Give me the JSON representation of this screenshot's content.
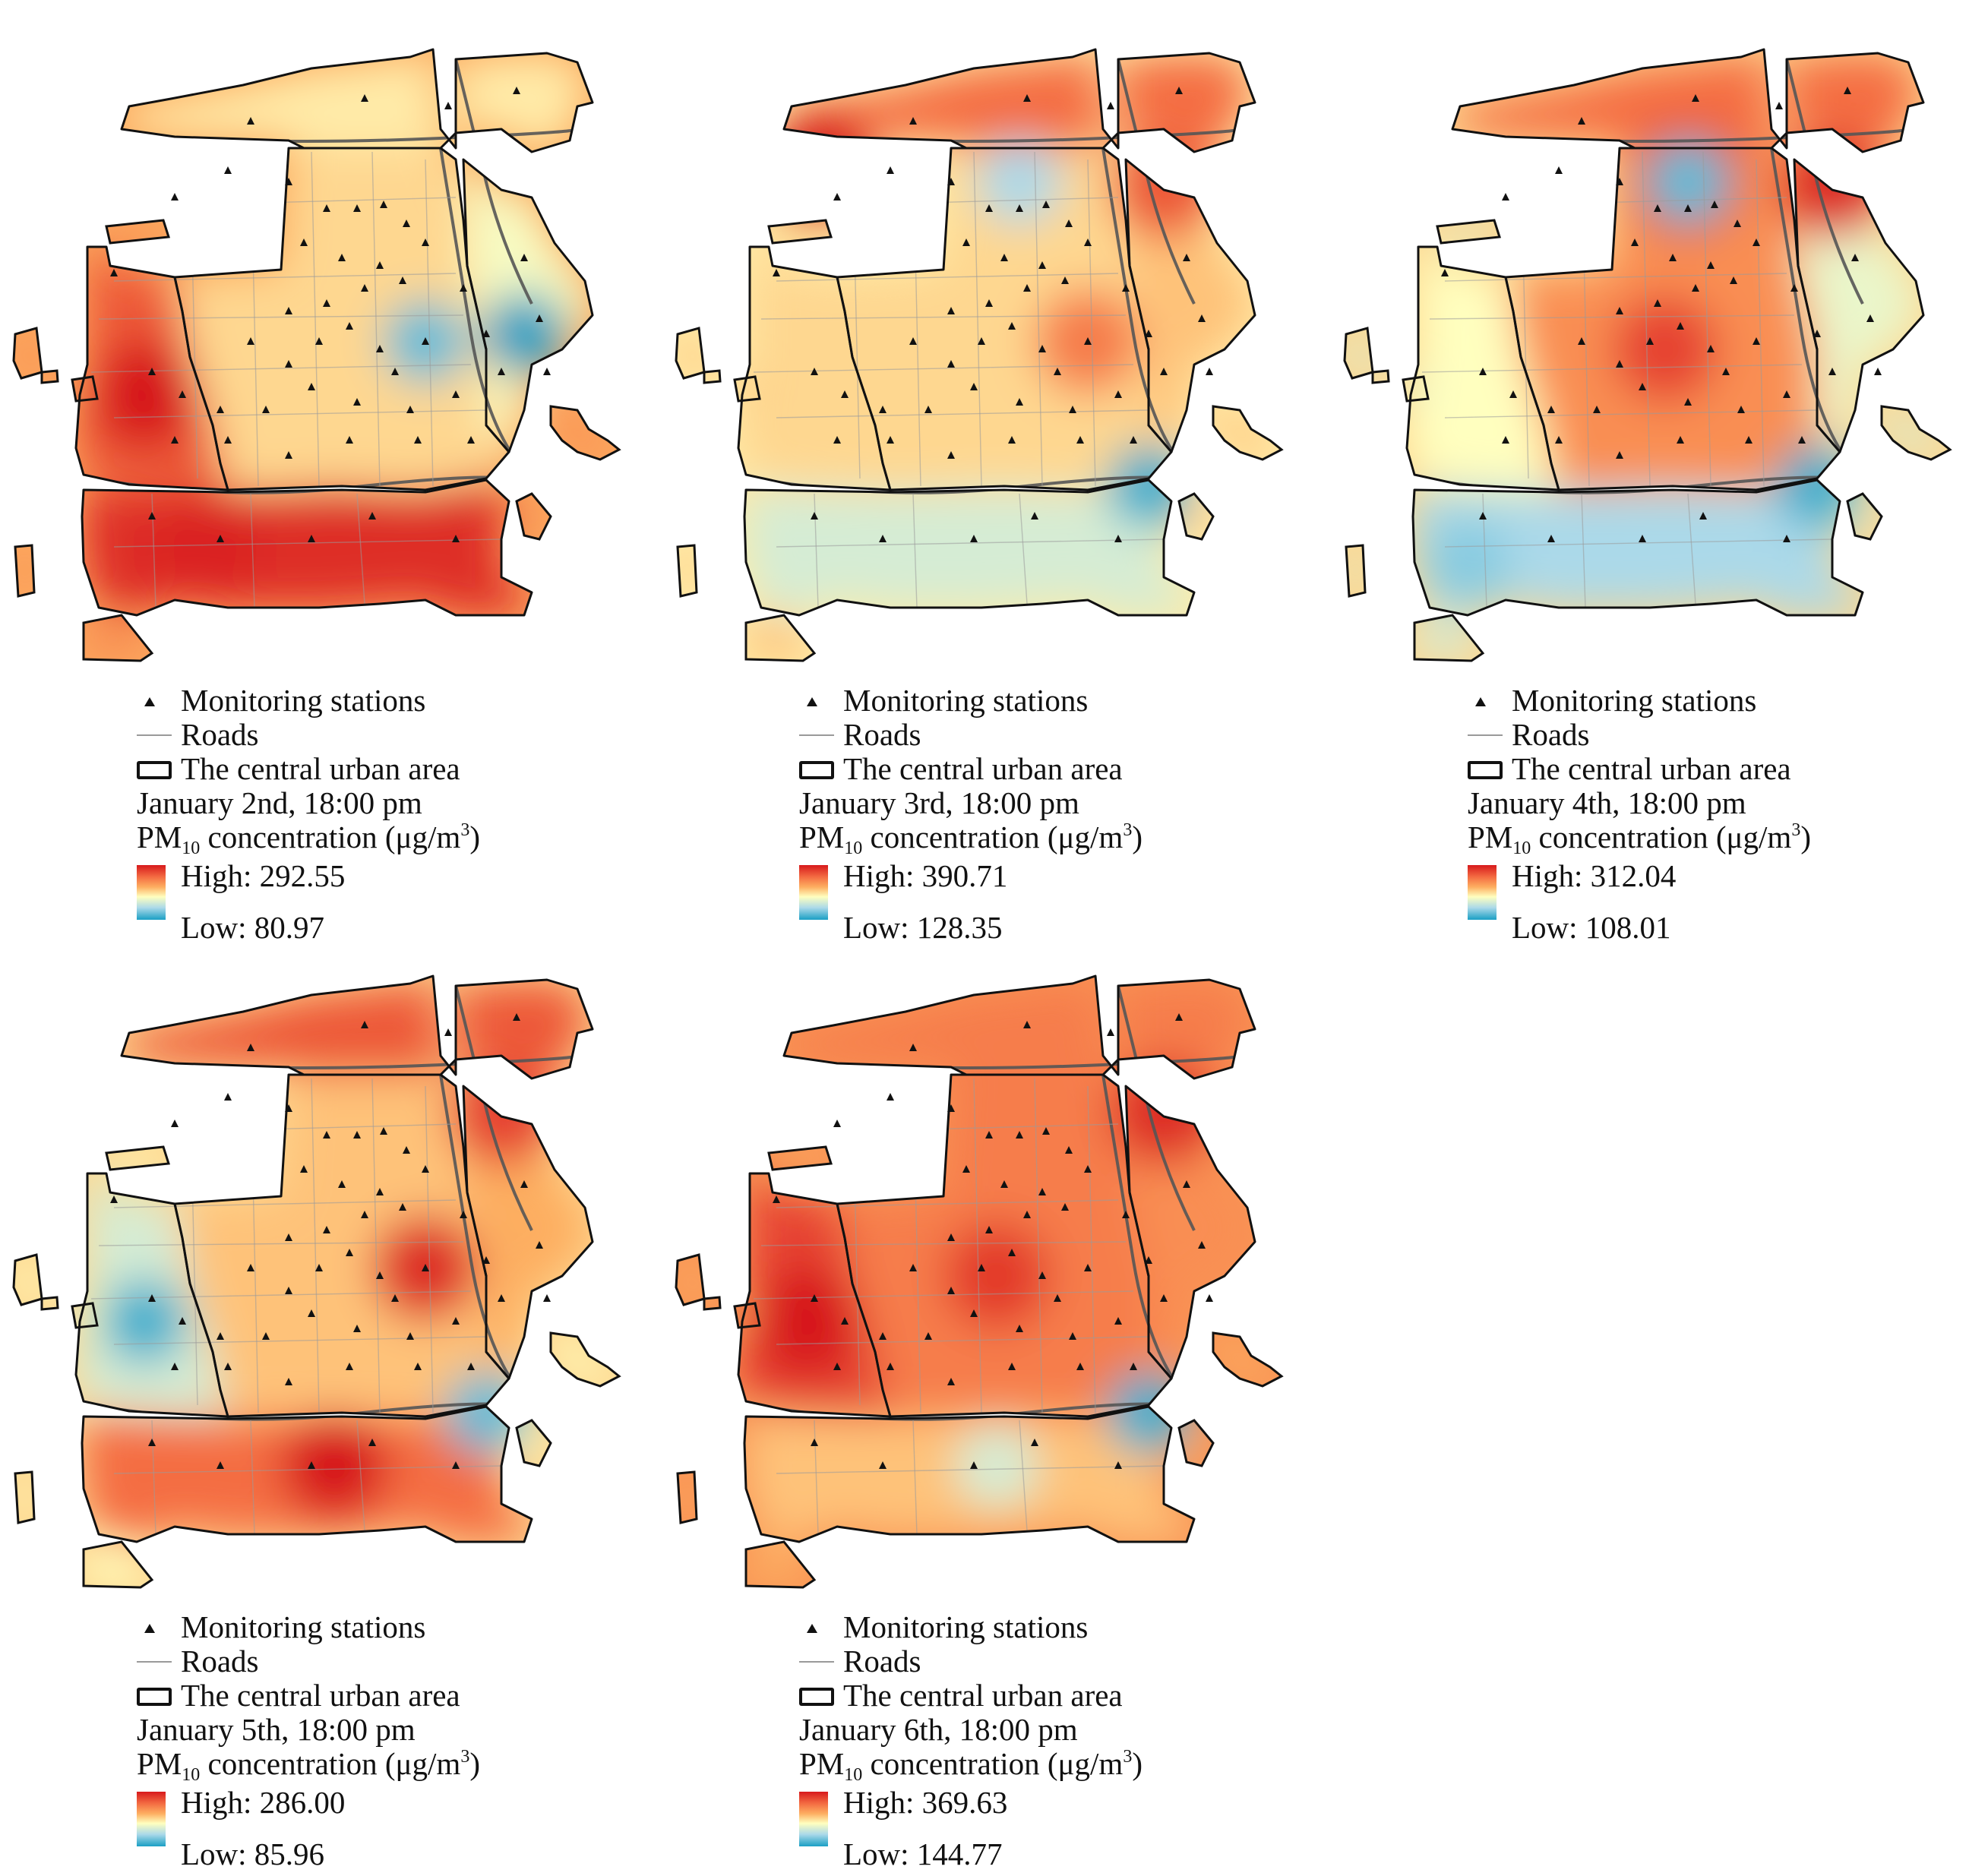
{
  "legend": {
    "stations": "Monitoring stations",
    "roads": "Roads",
    "area": "The central urban area",
    "pm_prefix": "PM",
    "pm_sub": "10",
    "pm_mid": " concentration (μg/m",
    "pm_sup": "3",
    "pm_end": ")"
  },
  "colors": {
    "high": "#d7191c",
    "mid_high": "#f46d43",
    "mid": "#fdae61",
    "neutral": "#ffffbf",
    "mid_low": "#abd9e9",
    "low": "#1a9fc4",
    "stations": "#111111",
    "roads": "#9a9a9a",
    "boundary": "#111111"
  },
  "maps": [
    {
      "date": "January 2nd, 18:00 pm",
      "high": "High: 292.55",
      "low": "Low: 80.97",
      "base_level": 0.62,
      "zone_levels": {
        "north": 0.45,
        "center": 0.5,
        "west": 0.85,
        "south": 0.95,
        "east": 0.38,
        "islands": 0.7
      },
      "hotspots": [
        {
          "pos": "west-center",
          "level": 1.0
        },
        {
          "pos": "south",
          "level": 0.98
        },
        {
          "pos": "south-center",
          "level": 0.95
        }
      ],
      "coldspots": [
        {
          "pos": "east",
          "level": 0.0
        },
        {
          "pos": "center-east",
          "level": 0.1
        }
      ]
    },
    {
      "date": "January 3rd, 18:00 pm",
      "high": "High: 390.71",
      "low": "Low: 128.35",
      "base_level": 0.45,
      "zone_levels": {
        "north": 0.8,
        "center": 0.5,
        "west": 0.5,
        "south": 0.3,
        "east": 0.55,
        "islands": 0.55
      },
      "hotspots": [
        {
          "pos": "northwest",
          "level": 1.0
        },
        {
          "pos": "northeast",
          "level": 0.85
        },
        {
          "pos": "center-east",
          "level": 0.75
        }
      ],
      "coldspots": [
        {
          "pos": "southeast",
          "level": 0.05
        },
        {
          "pos": "north-center",
          "level": 0.2
        }
      ]
    },
    {
      "date": "January 4th, 18:00 pm",
      "high": "High: 312.04",
      "low": "Low: 108.01",
      "base_level": 0.5,
      "zone_levels": {
        "north": 0.8,
        "center": 0.7,
        "west": 0.4,
        "south": 0.2,
        "east": 0.35,
        "islands": 0.3
      },
      "hotspots": [
        {
          "pos": "north-center",
          "level": 1.0
        },
        {
          "pos": "northeast",
          "level": 0.95
        },
        {
          "pos": "center",
          "level": 0.9
        }
      ],
      "coldspots": [
        {
          "pos": "southeast",
          "level": 0.05
        },
        {
          "pos": "southwest",
          "level": 0.15
        },
        {
          "pos": "north-center",
          "level": 0.1
        }
      ]
    },
    {
      "date": "January 5th, 18:00 pm",
      "high": "High: 286.00",
      "low": "Low: 85.96",
      "base_level": 0.5,
      "zone_levels": {
        "north": 0.85,
        "center": 0.55,
        "west": 0.3,
        "south": 0.8,
        "east": 0.6,
        "islands": 0.4
      },
      "hotspots": [
        {
          "pos": "south-center",
          "level": 1.0
        },
        {
          "pos": "center-east",
          "level": 0.95
        },
        {
          "pos": "northeast",
          "level": 0.9
        }
      ],
      "coldspots": [
        {
          "pos": "west-center",
          "level": 0.05
        },
        {
          "pos": "southeast",
          "level": 0.1
        }
      ]
    },
    {
      "date": "January 6th, 18:00 pm",
      "high": "High: 369.63",
      "low": "Low: 144.77",
      "base_level": 0.68,
      "zone_levels": {
        "north": 0.75,
        "center": 0.75,
        "west": 0.9,
        "south": 0.55,
        "east": 0.7,
        "islands": 0.6
      },
      "hotspots": [
        {
          "pos": "west-center",
          "level": 1.0
        },
        {
          "pos": "center",
          "level": 0.92
        },
        {
          "pos": "northeast",
          "level": 0.95
        }
      ],
      "coldspots": [
        {
          "pos": "southeast",
          "level": 0.05
        },
        {
          "pos": "south-center",
          "level": 0.3
        }
      ]
    }
  ]
}
